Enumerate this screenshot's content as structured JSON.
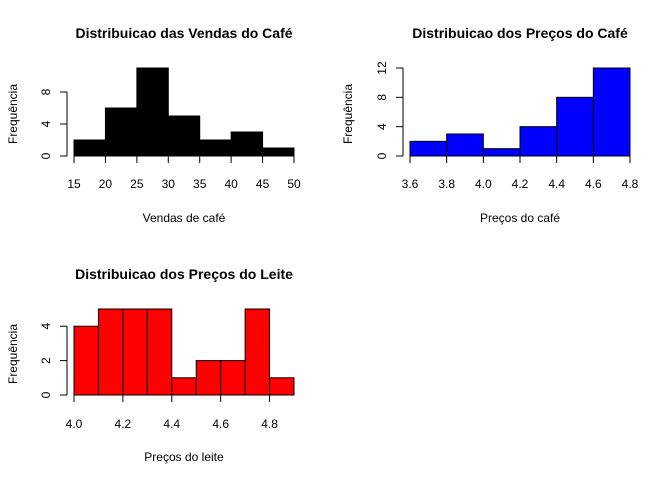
{
  "chart_data": [
    {
      "type": "bar",
      "title": "Distribuicao das Vendas do Café",
      "xlabel": "Vendas de café",
      "ylabel": "Frequência",
      "bar_color": "#000000",
      "bins": [
        15,
        20,
        25,
        30,
        35,
        40,
        45,
        50
      ],
      "counts": [
        2,
        6,
        11,
        5,
        2,
        3,
        1
      ],
      "xticks": [
        15,
        20,
        25,
        30,
        35,
        40,
        45,
        50
      ],
      "yticks": [
        0,
        4,
        8
      ],
      "xlim": [
        15,
        50
      ],
      "ylim": [
        0,
        11
      ]
    },
    {
      "type": "bar",
      "title": "Distribuicao dos Preços do Café",
      "xlabel": "Preços do café",
      "ylabel": "Frequência",
      "bar_color": "#0000ff",
      "bins": [
        3.6,
        3.8,
        4.0,
        4.2,
        4.4,
        4.6,
        4.8
      ],
      "counts": [
        2,
        3,
        1,
        4,
        8,
        12
      ],
      "xticks": [
        "3.6",
        "3.8",
        "4.0",
        "4.2",
        "4.4",
        "4.6",
        "4.8"
      ],
      "yticks": [
        0,
        4,
        8,
        12
      ],
      "xlim": [
        3.6,
        4.8
      ],
      "ylim": [
        0,
        12
      ]
    },
    {
      "type": "bar",
      "title": "Distribuicao dos Preços do Leite",
      "xlabel": "Preços do leite",
      "ylabel": "Frequência",
      "bar_color": "#ff0000",
      "bins": [
        4.0,
        4.1,
        4.2,
        4.3,
        4.4,
        4.5,
        4.6,
        4.7,
        4.8,
        4.9
      ],
      "counts": [
        4,
        5,
        5,
        5,
        1,
        2,
        2,
        5,
        1
      ],
      "xticks": [
        "4.0",
        "4.2",
        "4.4",
        "4.6",
        "4.8"
      ],
      "xtick_values": [
        4.0,
        4.2,
        4.4,
        4.6,
        4.8
      ],
      "yticks": [
        0,
        2,
        4
      ],
      "xlim": [
        4.0,
        4.9
      ],
      "ylim": [
        0,
        5
      ]
    }
  ]
}
